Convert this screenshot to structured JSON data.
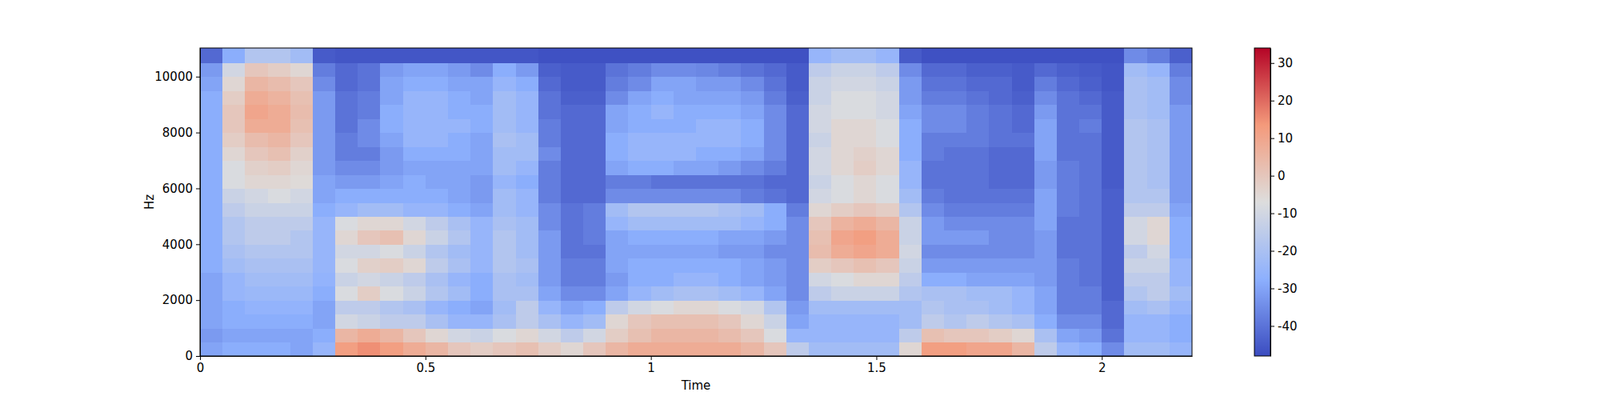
{
  "chart_data": {
    "type": "heatmap",
    "x_label": "Time",
    "y_label": "Hz",
    "xlim": [
      0,
      2.2
    ],
    "ylim": [
      0,
      11025
    ],
    "xticks": [
      0,
      0.5,
      1,
      1.5,
      2
    ],
    "yticks": [
      0,
      2000,
      4000,
      6000,
      8000,
      10000
    ],
    "x_edges": [
      0,
      0.05,
      0.1,
      0.15,
      0.2,
      0.25,
      0.3,
      0.35,
      0.4,
      0.45,
      0.5,
      0.55,
      0.6,
      0.65,
      0.7,
      0.75,
      0.8,
      0.85,
      0.9,
      0.95,
      1,
      1.05,
      1.1,
      1.15,
      1.2,
      1.25,
      1.3,
      1.35,
      1.4,
      1.45,
      1.5,
      1.55,
      1.6,
      1.65,
      1.7,
      1.75,
      1.8,
      1.85,
      1.9,
      1.95,
      2,
      2.05,
      2.1,
      2.15,
      2.2
    ],
    "y_edges": [
      0,
      500,
      1000,
      1500,
      2000,
      2500,
      3000,
      3500,
      4000,
      4500,
      5000,
      5500,
      6000,
      6500,
      7000,
      7500,
      8000,
      8500,
      9000,
      9500,
      10000,
      10500,
      11025
    ],
    "values": [
      [
        -30,
        -32,
        -30,
        -30,
        -30,
        -30,
        -28,
        -28,
        -28,
        -28,
        -28,
        -28,
        -28,
        -28,
        -28,
        -28,
        -28,
        -28,
        -28,
        -30,
        -32,
        -42
      ],
      [
        -28,
        -30,
        -28,
        -28,
        -25,
        -25,
        -22,
        -20,
        -18,
        -18,
        -15,
        -12,
        -8,
        -8,
        -5,
        -2,
        0,
        0,
        -2,
        -5,
        -10,
        -28
      ],
      [
        -28,
        -30,
        -28,
        -26,
        -24,
        -22,
        -20,
        -18,
        -15,
        -15,
        -12,
        -10,
        -5,
        -3,
        0,
        3,
        8,
        10,
        8,
        5,
        0,
        -18
      ],
      [
        -28,
        -30,
        -28,
        -26,
        -24,
        -22,
        -20,
        -18,
        -15,
        -15,
        -12,
        -8,
        -5,
        -2,
        2,
        5,
        8,
        8,
        6,
        3,
        -2,
        -18
      ],
      [
        -30,
        -30,
        -28,
        -26,
        -24,
        -22,
        -20,
        -18,
        -18,
        -15,
        -12,
        -10,
        -6,
        -5,
        -3,
        0,
        2,
        3,
        2,
        0,
        -5,
        -22
      ],
      [
        -25,
        -28,
        -30,
        -30,
        -28,
        -26,
        -25,
        -25,
        -25,
        -25,
        -28,
        -30,
        -30,
        -32,
        -32,
        -32,
        -32,
        -32,
        -32,
        -35,
        -38,
        -45
      ],
      [
        12,
        5,
        -10,
        -15,
        -8,
        -12,
        -8,
        -10,
        -5,
        -8,
        -25,
        -28,
        -32,
        -35,
        -38,
        -38,
        -40,
        -40,
        -40,
        -42,
        -42,
        -46
      ],
      [
        15,
        8,
        -12,
        -15,
        -2,
        -10,
        -3,
        -10,
        0,
        -5,
        -22,
        -28,
        -32,
        -35,
        -38,
        -35,
        -35,
        -38,
        -38,
        -40,
        -40,
        -46
      ],
      [
        12,
        5,
        -15,
        -18,
        -8,
        -12,
        -2,
        -8,
        2,
        -5,
        -22,
        -28,
        -30,
        -32,
        -32,
        -30,
        -28,
        -28,
        -30,
        -30,
        -32,
        -46
      ],
      [
        8,
        0,
        -15,
        -20,
        -12,
        -15,
        -5,
        -12,
        -5,
        -10,
        -25,
        -28,
        -28,
        -30,
        -28,
        -25,
        -25,
        -25,
        -25,
        -28,
        -30,
        -46
      ],
      [
        5,
        -5,
        -20,
        -25,
        -18,
        -20,
        -15,
        -18,
        -12,
        -15,
        -25,
        -28,
        -30,
        -30,
        -28,
        -25,
        -25,
        -25,
        -25,
        -28,
        -30,
        -46
      ],
      [
        0,
        -10,
        -25,
        -28,
        -22,
        -25,
        -20,
        -22,
        -18,
        -20,
        -28,
        -30,
        -30,
        -30,
        -28,
        -28,
        -25,
        -28,
        -28,
        -30,
        -32,
        -46
      ],
      [
        -2,
        -12,
        -25,
        -30,
        -28,
        -28,
        -25,
        -25,
        -25,
        -25,
        -30,
        -32,
        -32,
        -30,
        -30,
        -30,
        -28,
        -28,
        -30,
        -30,
        -35,
        -46
      ],
      [
        0,
        -8,
        -20,
        -22,
        -20,
        -20,
        -18,
        -18,
        -18,
        -20,
        -22,
        -22,
        -25,
        -22,
        -22,
        -20,
        -22,
        -22,
        -22,
        -25,
        -28,
        -46
      ],
      [
        2,
        -5,
        -15,
        -15,
        -20,
        -22,
        -20,
        -22,
        -22,
        -22,
        -25,
        -25,
        -28,
        -25,
        -22,
        -22,
        -25,
        -25,
        -25,
        -28,
        -32,
        -46
      ],
      [
        -2,
        -10,
        -20,
        -25,
        -30,
        -32,
        -32,
        -32,
        -32,
        -35,
        -35,
        -38,
        -38,
        -38,
        -35,
        -38,
        -38,
        -40,
        -40,
        -42,
        -44,
        -47
      ],
      [
        -5,
        -15,
        -25,
        -30,
        -35,
        -38,
        -38,
        -40,
        -40,
        -40,
        -40,
        -42,
        -42,
        -42,
        -42,
        -42,
        -42,
        -42,
        -44,
        -45,
        -45,
        -47
      ],
      [
        0,
        -10,
        -22,
        -28,
        -35,
        -38,
        -38,
        -40,
        -38,
        -38,
        -38,
        -42,
        -42,
        -42,
        -42,
        -42,
        -42,
        -42,
        -44,
        -45,
        -45,
        -47
      ],
      [
        5,
        -2,
        -5,
        -15,
        -30,
        -32,
        -30,
        -30,
        -30,
        -25,
        -22,
        -35,
        -38,
        -30,
        -28,
        -28,
        -30,
        -30,
        -35,
        -38,
        -40,
        -47
      ],
      [
        8,
        2,
        0,
        -10,
        -25,
        -28,
        -28,
        -30,
        -28,
        -22,
        -18,
        -35,
        -38,
        -28,
        -25,
        -25,
        -28,
        -28,
        -30,
        -35,
        -38,
        -47
      ],
      [
        8,
        5,
        2,
        -8,
        -22,
        -28,
        -28,
        -30,
        -28,
        -22,
        -18,
        -35,
        -40,
        -28,
        -25,
        -25,
        -28,
        -25,
        -28,
        -30,
        -35,
        -47
      ],
      [
        8,
        5,
        2,
        -5,
        -20,
        -25,
        -28,
        -30,
        -28,
        -22,
        -18,
        -35,
        -40,
        -30,
        -25,
        -25,
        -28,
        -28,
        -30,
        -30,
        -35,
        -47
      ],
      [
        8,
        5,
        2,
        -5,
        -20,
        -25,
        -28,
        -30,
        -28,
        -22,
        -18,
        -35,
        -40,
        -30,
        -28,
        -25,
        -25,
        -28,
        -30,
        -32,
        -36,
        -47
      ],
      [
        8,
        3,
        0,
        -8,
        -22,
        -28,
        -28,
        -32,
        -30,
        -22,
        -20,
        -35,
        -40,
        -32,
        -28,
        -25,
        -25,
        -28,
        -30,
        -32,
        -38,
        -47
      ],
      [
        5,
        0,
        -5,
        -10,
        -25,
        -30,
        -30,
        -32,
        -30,
        -25,
        -22,
        -38,
        -40,
        -35,
        -30,
        -28,
        -28,
        -30,
        -32,
        -35,
        -40,
        -47
      ],
      [
        0,
        -8,
        -12,
        -18,
        -30,
        -32,
        -32,
        -35,
        -32,
        -28,
        -28,
        -40,
        -42,
        -38,
        -35,
        -35,
        -35,
        -35,
        -38,
        -40,
        -42,
        -47
      ],
      [
        -15,
        -25,
        -30,
        -32,
        -35,
        -35,
        -35,
        -35,
        -35,
        -35,
        -38,
        -42,
        -42,
        -42,
        -42,
        -42,
        -42,
        -42,
        -44,
        -45,
        -45,
        -47
      ],
      [
        -22,
        -25,
        -25,
        -22,
        -15,
        -10,
        -2,
        3,
        2,
        0,
        -5,
        -10,
        -12,
        -10,
        -10,
        -12,
        -10,
        -10,
        -12,
        -12,
        -15,
        -25
      ],
      [
        -22,
        -25,
        -25,
        -22,
        -12,
        -8,
        0,
        8,
        10,
        6,
        -2,
        -8,
        -8,
        -5,
        -5,
        -5,
        -5,
        -8,
        -8,
        -10,
        -12,
        -22
      ],
      [
        -22,
        -25,
        -25,
        -22,
        -12,
        -5,
        2,
        10,
        12,
        8,
        0,
        -5,
        -5,
        -2,
        -3,
        -5,
        -5,
        -8,
        -8,
        -10,
        -12,
        -22
      ],
      [
        -22,
        -25,
        -25,
        -22,
        -12,
        -5,
        0,
        8,
        8,
        5,
        -2,
        -8,
        -8,
        -5,
        -5,
        -8,
        -8,
        -10,
        -10,
        -12,
        -15,
        -25
      ],
      [
        -5,
        -15,
        -22,
        -22,
        -18,
        -15,
        -12,
        -10,
        -12,
        -12,
        -18,
        -22,
        -25,
        -25,
        -28,
        -28,
        -28,
        -30,
        -32,
        -32,
        -35,
        -45
      ],
      [
        12,
        2,
        -15,
        -18,
        -20,
        -28,
        -32,
        -35,
        -32,
        -32,
        -35,
        -38,
        -40,
        -40,
        -38,
        -38,
        -35,
        -35,
        -38,
        -40,
        -42,
        -47
      ],
      [
        12,
        0,
        -18,
        -20,
        -20,
        -28,
        -32,
        -35,
        -32,
        -35,
        -38,
        -40,
        -40,
        -40,
        -40,
        -38,
        -35,
        -35,
        -38,
        -40,
        -42,
        -47
      ],
      [
        10,
        0,
        -15,
        -20,
        -22,
        -30,
        -32,
        -35,
        -32,
        -35,
        -38,
        -40,
        -40,
        -40,
        -40,
        -38,
        -38,
        -38,
        -40,
        -42,
        -44,
        -47
      ],
      [
        10,
        -2,
        -18,
        -22,
        -22,
        -30,
        -32,
        -35,
        -35,
        -35,
        -38,
        -40,
        -42,
        -42,
        -42,
        -40,
        -40,
        -40,
        -42,
        -42,
        -44,
        -47
      ],
      [
        5,
        -5,
        -20,
        -25,
        -25,
        -30,
        -32,
        -35,
        -35,
        -35,
        -38,
        -40,
        -42,
        -42,
        -42,
        -40,
        -42,
        -42,
        -44,
        -45,
        -45,
        -47
      ],
      [
        -15,
        -20,
        -28,
        -30,
        -30,
        -32,
        -32,
        -32,
        -32,
        -30,
        -30,
        -30,
        -32,
        -32,
        -30,
        -30,
        -30,
        -32,
        -35,
        -38,
        -42,
        -47
      ],
      [
        -25,
        -30,
        -35,
        -38,
        -38,
        -38,
        -38,
        -40,
        -40,
        -40,
        -38,
        -38,
        -38,
        -38,
        -40,
        -40,
        -40,
        -40,
        -40,
        -42,
        -44,
        -47
      ],
      [
        -28,
        -32,
        -35,
        -38,
        -38,
        -40,
        -40,
        -40,
        -40,
        -40,
        -40,
        -40,
        -40,
        -40,
        -40,
        -40,
        -38,
        -40,
        -42,
        -44,
        -45,
        -47
      ],
      [
        -35,
        -40,
        -42,
        -42,
        -44,
        -44,
        -44,
        -44,
        -44,
        -44,
        -44,
        -44,
        -45,
        -45,
        -45,
        -45,
        -45,
        -45,
        -45,
        -46,
        -46,
        -47
      ],
      [
        -22,
        -25,
        -25,
        -22,
        -18,
        -15,
        -12,
        -15,
        -10,
        -10,
        -15,
        -18,
        -18,
        -18,
        -18,
        -18,
        -18,
        -20,
        -20,
        -20,
        -22,
        -35
      ],
      [
        -22,
        -25,
        -25,
        -20,
        -15,
        -15,
        -12,
        -10,
        -5,
        -5,
        -15,
        -18,
        -20,
        -20,
        -20,
        -20,
        -20,
        -22,
        -22,
        -22,
        -25,
        -38
      ],
      [
        -25,
        -28,
        -28,
        -25,
        -22,
        -25,
        -25,
        -28,
        -28,
        -28,
        -30,
        -32,
        -32,
        -32,
        -32,
        -32,
        -32,
        -32,
        -35,
        -35,
        -38,
        -44
      ]
    ],
    "colorbar": {
      "range": [
        -48,
        34
      ],
      "ticks": [
        -40,
        -30,
        -20,
        -10,
        0,
        10,
        20,
        30
      ]
    }
  }
}
